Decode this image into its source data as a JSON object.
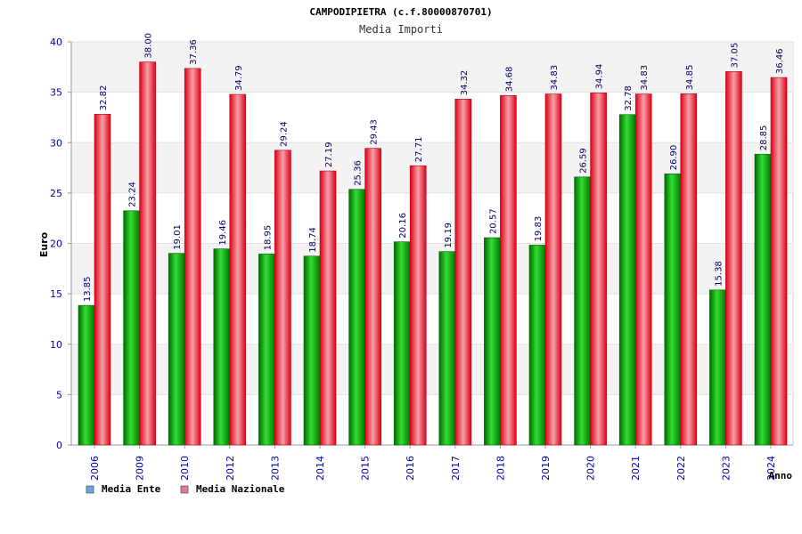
{
  "chart_data": {
    "type": "bar",
    "title": "CAMPODIPIETRA (c.f.80000870701)",
    "subtitle": "Media Importi",
    "ylabel": "Euro",
    "xlabel": "Anno",
    "ylim": [
      0,
      40
    ],
    "yticks": [
      0,
      5,
      10,
      15,
      20,
      25,
      30,
      35,
      40
    ],
    "grid": true,
    "legend_position": "bottom-left",
    "categories": [
      "2006",
      "2009",
      "2010",
      "2012",
      "2013",
      "2014",
      "2015",
      "2016",
      "2017",
      "2018",
      "2019",
      "2020",
      "2021",
      "2022",
      "2023",
      "2024"
    ],
    "series": [
      {
        "name": "Media Ente",
        "legend_color": "#6aa6e8",
        "color": "#00b400",
        "values": [
          13.85,
          23.24,
          19.01,
          19.46,
          18.95,
          18.74,
          25.36,
          20.16,
          19.19,
          20.57,
          19.83,
          26.59,
          32.78,
          26.9,
          15.38,
          28.85
        ],
        "labels": [
          "13.85",
          "23.24",
          "19.01",
          "19.46",
          "18.95",
          "18.74",
          "25.36",
          "20.16",
          "19.19",
          "20.57",
          "19.83",
          "26.59",
          "32.78",
          "26.90",
          "15.38",
          "28.85"
        ]
      },
      {
        "name": "Media Nazionale",
        "legend_color": "#e07aa0",
        "color": "#e8001a",
        "values": [
          32.82,
          38.0,
          37.36,
          34.79,
          29.24,
          27.19,
          29.43,
          27.71,
          34.32,
          34.68,
          34.83,
          34.94,
          34.83,
          34.85,
          37.05,
          36.46
        ],
        "labels": [
          "32.82",
          "38.00",
          "37.36",
          "34.79",
          "29.24",
          "27.19",
          "29.43",
          "27.71",
          "34.32",
          "34.68",
          "34.83",
          "34.94",
          "34.83",
          "34.85",
          "37.05",
          "36.46"
        ]
      }
    ]
  }
}
